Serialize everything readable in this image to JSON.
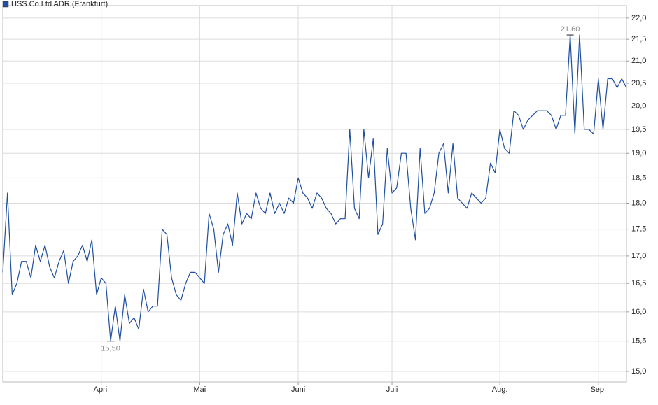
{
  "chart_data": {
    "type": "line",
    "legend": "top-left",
    "log_y": true,
    "grid": true,
    "categories": [
      null,
      null,
      null,
      null,
      null,
      null,
      null,
      null,
      null,
      null,
      null,
      null,
      null,
      null,
      null,
      null,
      null,
      null,
      null,
      null,
      null,
      "April",
      null,
      null,
      null,
      null,
      null,
      null,
      null,
      null,
      null,
      null,
      null,
      null,
      null,
      null,
      null,
      null,
      null,
      null,
      null,
      null,
      "Mai",
      null,
      null,
      null,
      null,
      null,
      null,
      null,
      null,
      null,
      null,
      null,
      null,
      null,
      null,
      null,
      null,
      null,
      null,
      null,
      null,
      "Juni",
      null,
      null,
      null,
      null,
      null,
      null,
      null,
      null,
      null,
      null,
      null,
      null,
      null,
      null,
      null,
      null,
      null,
      null,
      null,
      "Juli",
      null,
      null,
      null,
      null,
      null,
      null,
      null,
      null,
      null,
      null,
      null,
      null,
      null,
      null,
      null,
      null,
      null,
      null,
      null,
      null,
      null,
      null,
      "Aug.",
      null,
      null,
      null,
      null,
      null,
      null,
      null,
      null,
      null,
      null,
      null,
      null,
      null,
      null,
      null,
      null,
      null,
      null,
      null,
      null,
      "Sep.",
      null,
      null,
      null,
      null,
      null,
      null
    ],
    "series": [
      {
        "name": "USS Co Ltd ADR (Frankfurt)",
        "color": "#1f4fa0",
        "values": [
          16.7,
          18.2,
          16.3,
          16.5,
          16.9,
          16.9,
          16.6,
          17.2,
          16.9,
          17.2,
          16.8,
          16.6,
          16.9,
          17.1,
          16.5,
          16.9,
          17.0,
          17.2,
          16.9,
          17.3,
          16.3,
          16.6,
          16.5,
          15.5,
          16.1,
          15.5,
          16.3,
          15.8,
          15.9,
          15.7,
          16.4,
          16.0,
          16.1,
          16.1,
          17.5,
          17.4,
          16.6,
          16.3,
          16.2,
          16.5,
          16.7,
          16.7,
          16.6,
          16.5,
          17.8,
          17.5,
          16.7,
          17.4,
          17.6,
          17.2,
          18.2,
          17.6,
          17.8,
          17.7,
          18.2,
          17.9,
          17.8,
          18.2,
          17.8,
          18.0,
          17.8,
          18.1,
          18.0,
          18.5,
          18.2,
          18.1,
          17.9,
          18.2,
          18.1,
          17.9,
          17.8,
          17.6,
          17.7,
          17.7,
          19.5,
          17.9,
          17.7,
          19.5,
          18.5,
          19.3,
          17.4,
          17.6,
          19.1,
          18.2,
          18.3,
          19.0,
          19.0,
          17.9,
          17.3,
          19.1,
          17.8,
          17.9,
          18.2,
          19.0,
          19.2,
          18.2,
          19.2,
          18.1,
          18.0,
          17.9,
          18.2,
          18.1,
          18.0,
          18.1,
          18.8,
          18.6,
          19.5,
          19.1,
          19.0,
          19.9,
          19.8,
          19.5,
          19.7,
          19.8,
          19.9,
          19.9,
          19.9,
          19.8,
          19.5,
          19.8,
          19.8,
          21.6,
          19.4,
          21.6,
          19.5,
          19.5,
          19.4,
          20.6,
          19.5,
          20.6,
          20.6,
          20.4,
          20.6,
          20.4
        ]
      }
    ],
    "annotations": [
      {
        "index": 121,
        "label": "21,60"
      },
      {
        "index": 23,
        "label": "15,50"
      }
    ],
    "ylim": [
      14.83,
      22.3
    ],
    "yticks": [
      {
        "value": 15,
        "label": "15,0"
      },
      {
        "value": 15.5,
        "label": "15,5"
      },
      {
        "value": 16,
        "label": "16,0"
      },
      {
        "value": 16.5,
        "label": "16,5"
      },
      {
        "value": 17,
        "label": "17,0"
      },
      {
        "value": 17.5,
        "label": "17,5"
      },
      {
        "value": 18,
        "label": "18,0"
      },
      {
        "value": 18.5,
        "label": "18,5"
      },
      {
        "value": 19,
        "label": "19,0"
      },
      {
        "value": 19.5,
        "label": "19,5"
      },
      {
        "value": 20,
        "label": "20,0"
      },
      {
        "value": 20.5,
        "label": "20,5"
      },
      {
        "value": 21,
        "label": "21,0"
      },
      {
        "value": 21.5,
        "label": "21,5"
      },
      {
        "value": 22,
        "label": "22,0"
      }
    ]
  }
}
